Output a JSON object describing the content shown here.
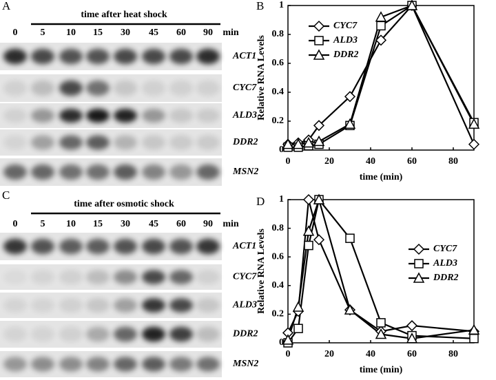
{
  "panels": [
    {
      "letter": "A",
      "title": "time after heat shock",
      "lanes": [
        "0",
        "5",
        "10",
        "15",
        "30",
        "45",
        "60",
        "90"
      ],
      "lane_unit": "min",
      "genes": [
        "ACT1",
        "CYC7",
        "ALD3",
        "DDR2",
        "MSN2"
      ]
    },
    {
      "letter": "C",
      "title": "time after osmotic shock",
      "lanes": [
        "0",
        "5",
        "10",
        "15",
        "30",
        "45",
        "60",
        "90"
      ],
      "lane_unit": "min",
      "genes": [
        "ACT1",
        "CYC7",
        "ALD3",
        "DDR2",
        "MSN2"
      ]
    }
  ],
  "chart_data": [
    {
      "type": "line",
      "panel_label": "B",
      "xlabel": "time (min)",
      "ylabel": "Relative RNA Levels",
      "x": [
        0,
        5,
        10,
        15,
        30,
        45,
        60,
        90
      ],
      "xlim": [
        0,
        90
      ],
      "xticks": [
        0,
        20,
        40,
        60,
        80
      ],
      "ylim": [
        0,
        1
      ],
      "yticks": [
        0,
        0.2,
        0.4,
        0.6,
        0.8,
        1
      ],
      "legend": "upper left",
      "series": [
        {
          "name": "CYC7",
          "color": "#000000",
          "marker": "diamond",
          "values": [
            0.04,
            0.05,
            0.07,
            0.17,
            0.37,
            0.76,
            1.0,
            0.04
          ]
        },
        {
          "name": "ALD3",
          "color": "#000000",
          "marker": "square",
          "values": [
            0.02,
            0.02,
            0.03,
            0.04,
            0.17,
            0.86,
            1.0,
            0.19
          ]
        },
        {
          "name": "DDR2",
          "color": "#000000",
          "marker": "triangle",
          "values": [
            0.04,
            0.04,
            0.05,
            0.06,
            0.18,
            0.92,
            1.0,
            0.18
          ]
        }
      ]
    },
    {
      "type": "line",
      "panel_label": "D",
      "xlabel": "time (min)",
      "ylabel": "Relative RNA Levels",
      "x": [
        0,
        5,
        10,
        15,
        30,
        45,
        60,
        90
      ],
      "xlim": [
        0,
        90
      ],
      "xticks": [
        0,
        20,
        40,
        60,
        80
      ],
      "ylim": [
        0,
        1
      ],
      "yticks": [
        0,
        0.2,
        0.4,
        0.6,
        0.8,
        1
      ],
      "legend": "center right",
      "series": [
        {
          "name": "CYC7",
          "color": "#000000",
          "marker": "diamond",
          "values": [
            0.07,
            0.22,
            1.0,
            0.72,
            0.23,
            0.08,
            0.12,
            0.08
          ]
        },
        {
          "name": "ALD3",
          "color": "#000000",
          "marker": "square",
          "values": [
            0.0,
            0.1,
            0.68,
            1.0,
            0.73,
            0.14,
            0.05,
            0.03
          ]
        },
        {
          "name": "DDR2",
          "color": "#000000",
          "marker": "triangle",
          "values": [
            0.02,
            0.25,
            0.78,
            1.0,
            0.23,
            0.06,
            0.03,
            0.09
          ]
        }
      ]
    }
  ]
}
